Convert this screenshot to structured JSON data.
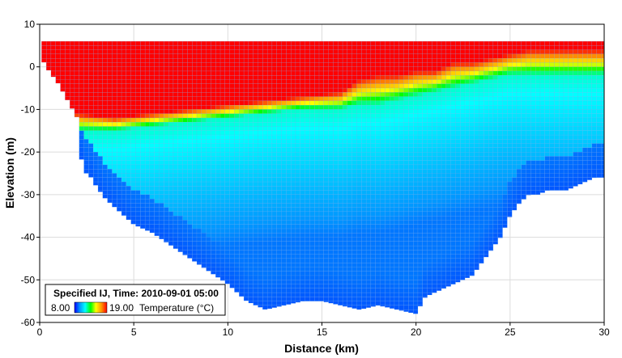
{
  "chart_data": {
    "type": "heatmap",
    "title": "",
    "xlabel": "Distance (km)",
    "ylabel": "Elevation (m)",
    "xlim": [
      0,
      30
    ],
    "ylim": [
      -60,
      10
    ],
    "x_ticks": [
      "0",
      "5",
      "10",
      "15",
      "20",
      "25",
      "30"
    ],
    "y_ticks": [
      "10",
      "0",
      "-10",
      "-20",
      "-30",
      "-40",
      "-50",
      "-60"
    ],
    "grid": true,
    "water_surface_elevation": 6,
    "bottom_profile": {
      "x": [
        0.1,
        0.5,
        1.0,
        1.5,
        2.0,
        2.3,
        2.6,
        3.0,
        3.5,
        4.0,
        4.5,
        5.0,
        6.0,
        7.0,
        8.0,
        9.0,
        10.0,
        11.0,
        12.0,
        13.0,
        14.0,
        15.0,
        16.0,
        17.0,
        18.0,
        19.0,
        20.0,
        20.5,
        21.0,
        21.5,
        22.0,
        22.5,
        23.0,
        23.5,
        24.0,
        24.5,
        25.0,
        25.5,
        26.0,
        26.5,
        27.0,
        27.5,
        28.0,
        28.5,
        29.0,
        29.5,
        29.9
      ],
      "bed_elevation": [
        2,
        -1,
        -4,
        -8,
        -12,
        -25,
        -25,
        -28,
        -31,
        -33,
        -35,
        -37,
        -39,
        -42,
        -45,
        -48,
        -51,
        -55,
        -57,
        -56,
        -55,
        -55,
        -56,
        -57,
        -56,
        -57,
        -58,
        -54,
        -53,
        -52,
        -51,
        -50,
        -49,
        -46,
        -43,
        -40,
        -35,
        -32,
        -30,
        -30,
        -29,
        -29,
        -29,
        -28,
        -27,
        -26,
        -26
      ]
    },
    "temperature_profile": {
      "x": [
        0,
        2,
        4,
        6,
        8,
        10,
        12,
        14,
        16,
        17,
        18,
        19,
        20,
        21,
        22,
        23,
        24,
        25,
        26,
        27,
        28,
        29,
        30
      ],
      "mixed_layer_bottom": [
        -10,
        -11,
        -12,
        -11,
        -10,
        -9,
        -8,
        -7,
        -6,
        -3,
        -2,
        -2,
        -1,
        -1,
        1,
        1,
        2,
        3,
        4,
        4,
        4,
        4,
        4
      ],
      "thermocline_bottom": [
        -14,
        -15,
        -15,
        -14,
        -13,
        -12,
        -11,
        -10,
        -10,
        -9,
        -9,
        -8,
        -7,
        -6,
        -5,
        -4,
        -3,
        -2,
        -2,
        -2,
        -2,
        -2,
        -2
      ]
    },
    "surface_temperature": 19,
    "deep_temperature": 9.4,
    "bottom_temperature": 9.0,
    "colorbar": {
      "min": 8.0,
      "max": 19.0,
      "min_label": "8.00",
      "max_label": "19.00",
      "label": "Temperature (°C)",
      "colors": [
        "#0000ff",
        "#0096ff",
        "#00ffff",
        "#00ff00",
        "#ffff00",
        "#ff9600",
        "#ff0000"
      ]
    },
    "legend_title": "Specified IJ, Time: 2010-09-01 05:00",
    "legend_placement": "bottom-left"
  }
}
